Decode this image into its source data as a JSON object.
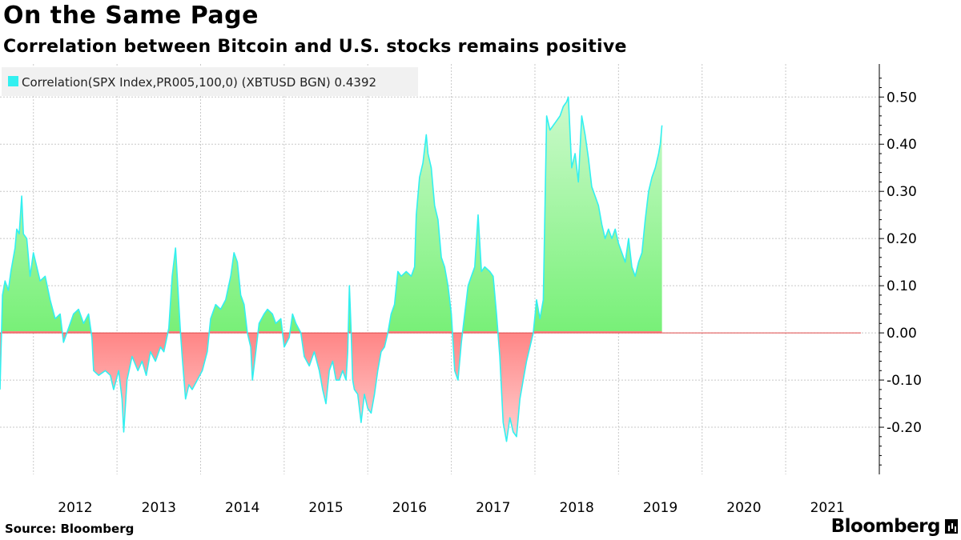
{
  "page": {
    "title": "On the Same Page",
    "subtitle": "Correlation between Bitcoin and U.S. stocks remains positive",
    "source": "Source: Bloomberg",
    "logo": "Bloomberg"
  },
  "chart_data": {
    "type": "area",
    "title": "On the Same Page",
    "subtitle": "Correlation between Bitcoin and U.S. stocks remains positive",
    "legend": {
      "label": "Correlation(SPX Index,PR005,100,0) (XBTUSD BGN) 0.4392",
      "placement": "top-left"
    },
    "colors": {
      "positive": "#7df57d",
      "negative": "#ff8a8a",
      "line": "#33f0f0",
      "legend_swatch": "#33f0f0"
    },
    "ylim": [
      -0.3,
      0.57
    ],
    "yticks": [
      -0.2,
      -0.1,
      0.0,
      0.1,
      0.2,
      0.3,
      0.4,
      0.5
    ],
    "ytick_labels": [
      "-0.20",
      "-0.10",
      "0.00",
      "0.10",
      "0.20",
      "0.30",
      "0.40",
      "0.50"
    ],
    "xlim": [
      2011.6,
      2021.9
    ],
    "year_labels": [
      "2012",
      "2013",
      "2014",
      "2015",
      "2016",
      "2017",
      "2018",
      "2019",
      "2020",
      "2021"
    ],
    "grid": true,
    "series": [
      {
        "values": [
          [
            2011.6,
            -0.12
          ],
          [
            2011.63,
            0.08
          ],
          [
            2011.66,
            0.11
          ],
          [
            2011.7,
            0.09
          ],
          [
            2011.73,
            0.13
          ],
          [
            2011.78,
            0.18
          ],
          [
            2011.8,
            0.22
          ],
          [
            2011.83,
            0.21
          ],
          [
            2011.86,
            0.29
          ],
          [
            2011.88,
            0.21
          ],
          [
            2011.92,
            0.2
          ],
          [
            2011.96,
            0.12
          ],
          [
            2012.0,
            0.17
          ],
          [
            2012.04,
            0.14
          ],
          [
            2012.08,
            0.11
          ],
          [
            2012.14,
            0.12
          ],
          [
            2012.2,
            0.07
          ],
          [
            2012.26,
            0.03
          ],
          [
            2012.32,
            0.04
          ],
          [
            2012.36,
            -0.02
          ],
          [
            2012.42,
            0.01
          ],
          [
            2012.48,
            0.04
          ],
          [
            2012.54,
            0.05
          ],
          [
            2012.6,
            0.02
          ],
          [
            2012.66,
            0.04
          ],
          [
            2012.7,
            -0.01
          ],
          [
            2012.72,
            -0.08
          ],
          [
            2012.78,
            -0.09
          ],
          [
            2012.86,
            -0.08
          ],
          [
            2012.92,
            -0.09
          ],
          [
            2012.96,
            -0.12
          ],
          [
            2013.02,
            -0.08
          ],
          [
            2013.06,
            -0.14
          ],
          [
            2013.08,
            -0.21
          ],
          [
            2013.12,
            -0.1
          ],
          [
            2013.18,
            -0.05
          ],
          [
            2013.25,
            -0.08
          ],
          [
            2013.3,
            -0.06
          ],
          [
            2013.35,
            -0.09
          ],
          [
            2013.4,
            -0.04
          ],
          [
            2013.46,
            -0.06
          ],
          [
            2013.52,
            -0.03
          ],
          [
            2013.56,
            -0.04
          ],
          [
            2013.62,
            0.01
          ],
          [
            2013.66,
            0.12
          ],
          [
            2013.7,
            0.18
          ],
          [
            2013.72,
            0.12
          ],
          [
            2013.74,
            0.06
          ],
          [
            2013.76,
            0.0
          ],
          [
            2013.78,
            -0.05
          ],
          [
            2013.82,
            -0.14
          ],
          [
            2013.86,
            -0.11
          ],
          [
            2013.9,
            -0.12
          ],
          [
            2013.96,
            -0.1
          ],
          [
            2014.02,
            -0.08
          ],
          [
            2014.08,
            -0.04
          ],
          [
            2014.12,
            0.03
          ],
          [
            2014.18,
            0.06
          ],
          [
            2014.24,
            0.05
          ],
          [
            2014.3,
            0.07
          ],
          [
            2014.36,
            0.12
          ],
          [
            2014.4,
            0.17
          ],
          [
            2014.44,
            0.15
          ],
          [
            2014.48,
            0.08
          ],
          [
            2014.52,
            0.06
          ],
          [
            2014.56,
            0.0
          ],
          [
            2014.6,
            -0.03
          ],
          [
            2014.62,
            -0.1
          ],
          [
            2014.66,
            -0.04
          ],
          [
            2014.7,
            0.02
          ],
          [
            2014.76,
            0.04
          ],
          [
            2014.8,
            0.05
          ],
          [
            2014.86,
            0.04
          ],
          [
            2014.9,
            0.02
          ],
          [
            2014.96,
            0.03
          ],
          [
            2015.0,
            -0.03
          ],
          [
            2015.06,
            -0.01
          ],
          [
            2015.1,
            0.04
          ],
          [
            2015.14,
            0.02
          ],
          [
            2015.2,
            0.0
          ],
          [
            2015.24,
            -0.05
          ],
          [
            2015.3,
            -0.07
          ],
          [
            2015.36,
            -0.04
          ],
          [
            2015.42,
            -0.08
          ],
          [
            2015.46,
            -0.12
          ],
          [
            2015.5,
            -0.15
          ],
          [
            2015.54,
            -0.08
          ],
          [
            2015.58,
            -0.06
          ],
          [
            2015.62,
            -0.1
          ],
          [
            2015.66,
            -0.1
          ],
          [
            2015.7,
            -0.08
          ],
          [
            2015.74,
            -0.1
          ],
          [
            2015.76,
            -0.04
          ],
          [
            2015.78,
            0.1
          ],
          [
            2015.8,
            0.01
          ],
          [
            2015.82,
            -0.1
          ],
          [
            2015.84,
            -0.12
          ],
          [
            2015.88,
            -0.13
          ],
          [
            2015.92,
            -0.19
          ],
          [
            2015.96,
            -0.13
          ],
          [
            2016.0,
            -0.16
          ],
          [
            2016.04,
            -0.17
          ],
          [
            2016.08,
            -0.13
          ],
          [
            2016.12,
            -0.08
          ],
          [
            2016.16,
            -0.04
          ],
          [
            2016.2,
            -0.03
          ],
          [
            2016.24,
            0.0
          ],
          [
            2016.28,
            0.04
          ],
          [
            2016.32,
            0.06
          ],
          [
            2016.36,
            0.13
          ],
          [
            2016.4,
            0.12
          ],
          [
            2016.46,
            0.13
          ],
          [
            2016.52,
            0.12
          ],
          [
            2016.56,
            0.14
          ],
          [
            2016.58,
            0.25
          ],
          [
            2016.62,
            0.33
          ],
          [
            2016.66,
            0.36
          ],
          [
            2016.7,
            0.42
          ],
          [
            2016.72,
            0.38
          ],
          [
            2016.76,
            0.35
          ],
          [
            2016.8,
            0.27
          ],
          [
            2016.84,
            0.24
          ],
          [
            2016.88,
            0.16
          ],
          [
            2016.92,
            0.14
          ],
          [
            2016.96,
            0.1
          ],
          [
            2017.0,
            0.04
          ],
          [
            2017.04,
            -0.08
          ],
          [
            2017.08,
            -0.1
          ],
          [
            2017.12,
            -0.02
          ],
          [
            2017.16,
            0.04
          ],
          [
            2017.2,
            0.1
          ],
          [
            2017.24,
            0.12
          ],
          [
            2017.28,
            0.14
          ],
          [
            2017.32,
            0.25
          ],
          [
            2017.36,
            0.13
          ],
          [
            2017.4,
            0.14
          ],
          [
            2017.46,
            0.13
          ],
          [
            2017.5,
            0.12
          ],
          [
            2017.54,
            0.04
          ],
          [
            2017.58,
            -0.05
          ],
          [
            2017.62,
            -0.19
          ],
          [
            2017.66,
            -0.23
          ],
          [
            2017.7,
            -0.18
          ],
          [
            2017.74,
            -0.21
          ],
          [
            2017.78,
            -0.22
          ],
          [
            2017.82,
            -0.14
          ],
          [
            2017.86,
            -0.1
          ],
          [
            2017.9,
            -0.06
          ],
          [
            2017.94,
            -0.03
          ],
          [
            2017.98,
            0.0
          ],
          [
            2018.02,
            0.07
          ],
          [
            2018.06,
            0.03
          ],
          [
            2018.1,
            0.07
          ],
          [
            2018.14,
            0.46
          ],
          [
            2018.18,
            0.43
          ],
          [
            2018.22,
            0.44
          ],
          [
            2018.26,
            0.45
          ],
          [
            2018.3,
            0.46
          ],
          [
            2018.34,
            0.48
          ],
          [
            2018.38,
            0.49
          ],
          [
            2018.4,
            0.5
          ],
          [
            2018.44,
            0.35
          ],
          [
            2018.48,
            0.38
          ],
          [
            2018.52,
            0.32
          ],
          [
            2018.56,
            0.46
          ],
          [
            2018.6,
            0.42
          ],
          [
            2018.64,
            0.37
          ],
          [
            2018.68,
            0.31
          ],
          [
            2018.72,
            0.29
          ],
          [
            2018.76,
            0.27
          ],
          [
            2018.8,
            0.23
          ],
          [
            2018.84,
            0.2
          ],
          [
            2018.88,
            0.22
          ],
          [
            2018.92,
            0.2
          ],
          [
            2018.96,
            0.22
          ],
          [
            2019.0,
            0.19
          ],
          [
            2019.04,
            0.17
          ],
          [
            2019.08,
            0.15
          ],
          [
            2019.12,
            0.2
          ],
          [
            2019.16,
            0.14
          ],
          [
            2019.2,
            0.12
          ],
          [
            2019.24,
            0.15
          ],
          [
            2019.28,
            0.17
          ],
          [
            2019.32,
            0.24
          ],
          [
            2019.36,
            0.3
          ],
          [
            2019.4,
            0.33
          ],
          [
            2019.44,
            0.35
          ],
          [
            2019.48,
            0.38
          ],
          [
            2019.5,
            0.4
          ],
          [
            2019.52,
            0.44
          ]
        ]
      }
    ]
  }
}
